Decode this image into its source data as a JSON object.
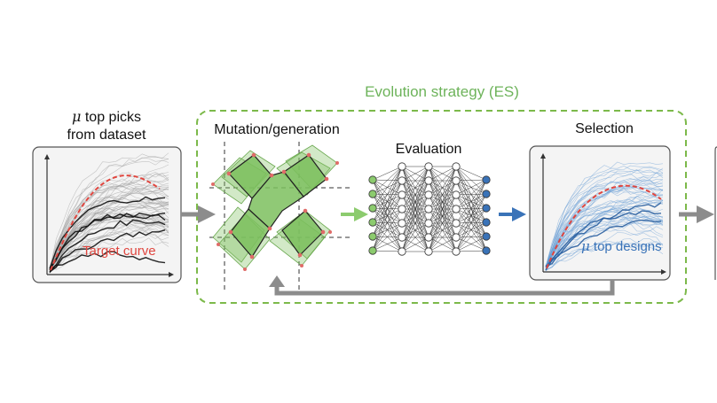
{
  "es_title": "Evolution strategy (ES)",
  "picks_title": {
    "mu": "μ",
    "line1": " top picks",
    "line2": "from dataset"
  },
  "target_label": "Target curve",
  "mutation_title": "Mutation/generation",
  "evaluation_title": "Evaluation",
  "selection_title": "Selection",
  "top_designs_label": {
    "mu": "μ",
    "text": " top designs"
  },
  "colors": {
    "es_box": "#7cb94a",
    "es_text": "#6db35a",
    "target_red": "#e0463f",
    "blue": "#3a73b8",
    "green_fill": "#7dbf5e",
    "grey_arrow": "#8c8c8c",
    "panel_bg": "#f4f4f4"
  }
}
